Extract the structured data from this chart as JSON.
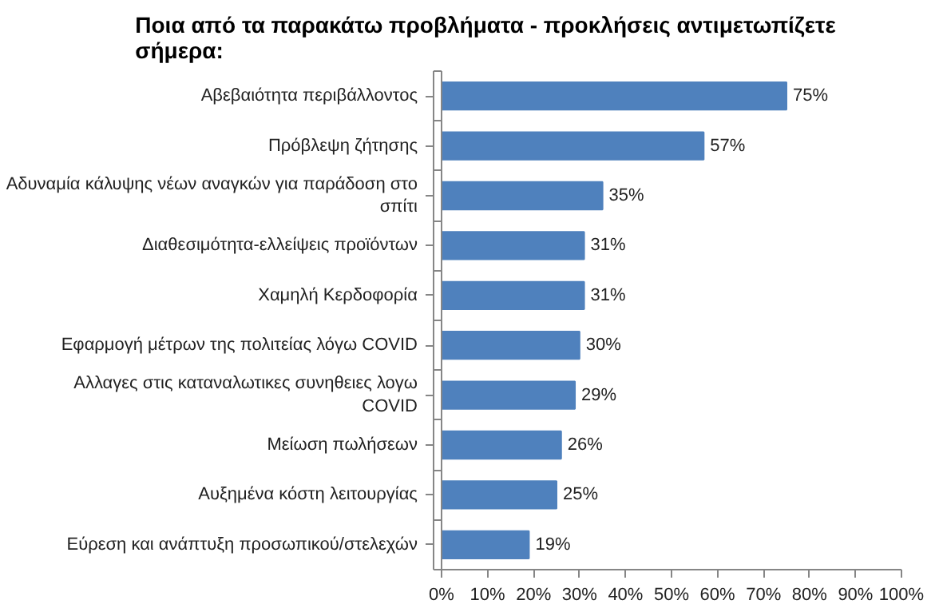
{
  "chart_data": {
    "type": "bar",
    "orientation": "horizontal",
    "title": "Ποια από τα παρακάτω προβλήματα - προκλήσεις αντιμετωπίζετε σήμερα:",
    "categories": [
      "Αβεβαιότητα περιβάλλοντος",
      "Πρόβλεψη ζήτησης",
      "Αδυναμία κάλυψης νέων αναγκών για παράδοση στο σπίτι",
      "Διαθεσιμότητα-ελλείψεις προϊόντων",
      "Χαμηλή Κερδοφορία",
      "Εφαρμογή μέτρων της πολιτείας λόγω COVID",
      "Αλλαγες στις καταναλωτικες συνηθειες λογω COVID",
      "Μείωση πωλήσεων",
      "Αυξημένα κόστη λειτουργίας",
      "Εύρεση και ανάπτυξη προσωπικού/στελεχών"
    ],
    "values": [
      75,
      57,
      35,
      31,
      31,
      30,
      29,
      26,
      25,
      19
    ],
    "value_labels": [
      "75%",
      "57%",
      "35%",
      "31%",
      "31%",
      "30%",
      "29%",
      "26%",
      "25%",
      "19%"
    ],
    "color": "#4f81bd",
    "xlim": [
      0,
      100
    ],
    "xticks": [
      {
        "value": 0,
        "label": "0%"
      },
      {
        "value": 10,
        "label": "10%"
      },
      {
        "value": 20,
        "label": "20%"
      },
      {
        "value": 30,
        "label": "30%"
      },
      {
        "value": 40,
        "label": "40%"
      },
      {
        "value": 50,
        "label": "50%"
      },
      {
        "value": 60,
        "label": "60%"
      },
      {
        "value": 70,
        "label": "70%"
      },
      {
        "value": 80,
        "label": "80%"
      },
      {
        "value": 90,
        "label": "90%"
      },
      {
        "value": 100,
        "label": "100%"
      }
    ],
    "grid": false
  }
}
